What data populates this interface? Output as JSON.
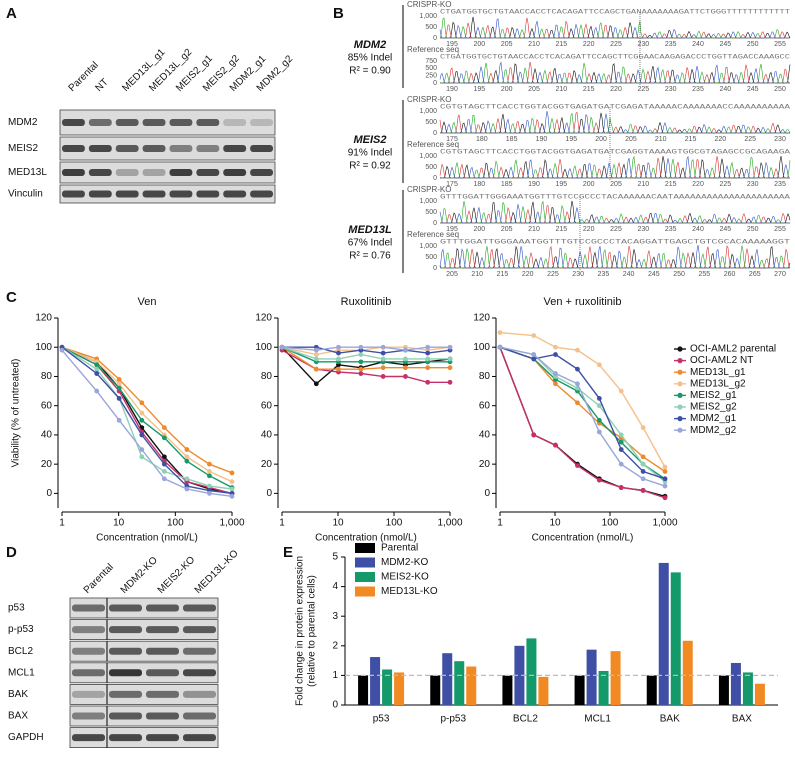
{
  "panel_labels": [
    "A",
    "B",
    "C",
    "D",
    "E"
  ],
  "panel_a": {
    "lanes": [
      "Parental",
      "NT",
      "MED13L_g1",
      "MED13L_g2",
      "MEIS2_g1",
      "MEIS2_g2",
      "MDM2_g1",
      "MDM2_g2"
    ],
    "rows": [
      "MDM2",
      "MEIS2",
      "MED13L",
      "Vinculin"
    ]
  },
  "panel_b": {
    "blocks": [
      {
        "gene": "MDM2",
        "indel": "85% Indel",
        "r2": "R² = 0.90",
        "ko_label": "CRISPR-KO",
        "ref_label": "Reference seq",
        "ko_seq": "CTGATGGTGCTGTAACCACCTCACAGATTCCAGCTGANAAAAAAAGATTCTGGGTTTTTTTTTTTT",
        "ref_seq": "CTGATGGTGCTGTAACCACCTCACAGATTCCAGCTTCGGAACAAGAGACCCTGGTTAGACCAAAGCC",
        "ko_yticks": [
          "1,000",
          "500",
          "0"
        ],
        "ref_yticks": [
          "750",
          "500",
          "250",
          "0"
        ],
        "ko_ticks": [
          195,
          200,
          205,
          210,
          215,
          220,
          225,
          230,
          235,
          240,
          245,
          250,
          255
        ],
        "ref_ticks": [
          190,
          195,
          200,
          205,
          210,
          215,
          220,
          225,
          230,
          235,
          240,
          245,
          250
        ]
      },
      {
        "gene": "MEIS2",
        "indel": "91% Indel",
        "r2": "R² = 0.92",
        "ko_label": "CRISPR-KO",
        "ref_label": "Reference seq",
        "ko_seq": "CGTGTAGCTTCACCTGGTACGGTGAGATGATCGAGATAAAAACAAAAAAACCAAAAAAAAAA",
        "ref_seq": "CGTGTAGCTTCACCTGGTACGGTGAGATGATCGAGGTAAAAGTGGCGTAGAGCCGCAGAAGA",
        "ko_yticks": [
          "1,000",
          "500",
          "0"
        ],
        "ref_yticks": [
          "1,000",
          "500",
          "0"
        ],
        "ko_ticks": [
          175,
          180,
          185,
          190,
          195,
          200,
          205,
          210,
          215,
          220,
          225,
          230
        ],
        "ref_ticks": [
          175,
          180,
          185,
          190,
          195,
          200,
          205,
          210,
          215,
          220,
          225,
          230,
          235
        ]
      },
      {
        "gene": "MED13L",
        "indel": "67% Indel",
        "r2": "R² = 0.76",
        "ko_label": "CRISPR-KO",
        "ref_label": "Reference seq",
        "ko_seq": "GTTTGGATTGGGAAATGGTTTGTCCGCCCTACAAAAAACAATAAAAAAAAAAAAAAAAAAAAA",
        "ref_seq": "GTTTGGATTGGGAAATGGTTTGTCCGCCCTACAGGATTGAGCTGTCGCACAAAAAGGT",
        "ko_yticks": [
          "1,000",
          "500",
          "0"
        ],
        "ref_yticks": [
          "1,000",
          "500",
          "0"
        ],
        "ko_ticks": [
          195,
          200,
          205,
          210,
          215,
          220,
          225,
          230,
          235,
          240,
          245,
          250,
          255
        ],
        "ref_ticks": [
          205,
          210,
          215,
          220,
          225,
          230,
          235,
          240,
          245,
          250,
          255,
          260,
          265,
          270
        ]
      }
    ]
  },
  "panel_d": {
    "lanes": [
      "Parental",
      "MDM2-KO",
      "MEIS2-KO",
      "MED13L-KO"
    ],
    "rows": [
      "p53",
      "p-p53",
      "BCL2",
      "MCL1",
      "BAK",
      "BAX",
      "GAPDH"
    ]
  },
  "chart_data": [
    {
      "type": "dose_response",
      "titles": [
        "Ven",
        "Ruxolitinib",
        "Ven + ruxolitinib"
      ],
      "xlabel": "Concentration (nmol/L)",
      "ylabel": "Viability (% of untreated)",
      "xscale": "log",
      "xlim": [
        1,
        1000
      ],
      "xticks": [
        1,
        10,
        100,
        {
          "value": 1000,
          "label": "1,000"
        }
      ],
      "ylim": [
        -10,
        120
      ],
      "yticks": [
        0,
        20,
        40,
        60,
        80,
        100,
        120
      ],
      "legend": "right",
      "x": [
        1,
        4.1,
        10.2,
        25.6,
        64,
        160,
        400,
        1000
      ],
      "series": [
        {
          "name": "OCI-AML2 parental",
          "color": "#111111",
          "values": [
            [
              100,
              90,
              72,
              45,
              25,
              8,
              3,
              0
            ],
            [
              100,
              75,
              88,
              86,
              90,
              88,
              90,
              92
            ],
            [
              100,
              40,
              33,
              20,
              10,
              4,
              2,
              -2
            ]
          ]
        },
        {
          "name": "OCI-AML2 NT",
          "color": "#c8306a",
          "values": [
            [
              100,
              88,
              70,
              42,
              22,
              8,
              4,
              0
            ],
            [
              98,
              85,
              83,
              82,
              80,
              80,
              76,
              76
            ],
            [
              100,
              40,
              33,
              19,
              9,
              4,
              2,
              -3
            ]
          ]
        },
        {
          "name": "MED13L_g1",
          "color": "#ee8a2c",
          "values": [
            [
              100,
              92,
              78,
              62,
              45,
              30,
              20,
              14
            ],
            [
              100,
              85,
              85,
              85,
              86,
              86,
              86,
              86
            ],
            [
              100,
              92,
              75,
              62,
              48,
              38,
              25,
              15
            ]
          ]
        },
        {
          "name": "MED13L_g2",
          "color": "#f5c08a",
          "values": [
            [
              100,
              90,
              75,
              55,
              40,
              25,
              15,
              8
            ],
            [
              100,
              95,
              98,
              98,
              100,
              100,
              98,
              100
            ],
            [
              110,
              108,
              100,
              98,
              88,
              70,
              45,
              18
            ]
          ]
        },
        {
          "name": "MEIS2_g1",
          "color": "#17996a",
          "values": [
            [
              100,
              88,
              72,
              50,
              38,
              22,
              12,
              4
            ],
            [
              100,
              90,
              90,
              90,
              90,
              90,
              90,
              90
            ],
            [
              100,
              92,
              78,
              70,
              50,
              35,
              20,
              10
            ]
          ]
        },
        {
          "name": "MEIS2_g2",
          "color": "#8fd1b4",
          "values": [
            [
              100,
              85,
              65,
              25,
              15,
              10,
              5,
              3
            ],
            [
              100,
              92,
              92,
              95,
              92,
              92,
              92,
              92
            ],
            [
              100,
              95,
              80,
              72,
              60,
              40,
              20,
              8
            ]
          ]
        },
        {
          "name": "MDM2_g1",
          "color": "#3f4fa6",
          "values": [
            [
              100,
              82,
              65,
              40,
              20,
              5,
              2,
              0
            ],
            [
              100,
              100,
              96,
              98,
              96,
              98,
              96,
              98
            ],
            [
              100,
              92,
              95,
              85,
              65,
              30,
              15,
              10
            ]
          ]
        },
        {
          "name": "MDM2_g2",
          "color": "#9aa5d9",
          "values": [
            [
              98,
              70,
              50,
              30,
              10,
              3,
              0,
              -2
            ],
            [
              100,
              98,
              100,
              100,
              100,
              98,
              100,
              100
            ],
            [
              100,
              95,
              82,
              75,
              42,
              20,
              10,
              5
            ]
          ]
        }
      ]
    },
    {
      "type": "bar",
      "ylabel": [
        "Fold change in protein expression",
        "(relative to parental cells)"
      ],
      "categories": [
        "p53",
        "p-p53",
        "BCL2",
        "MCL1",
        "BAK",
        "BAX"
      ],
      "ylim": [
        0,
        5
      ],
      "yticks": [
        0,
        1,
        2,
        3,
        4,
        5
      ],
      "reference_line": 1,
      "legend": "upper left",
      "series": [
        {
          "name": "Parental",
          "color": "#000000",
          "values": [
            1,
            1,
            1,
            1,
            1,
            1
          ]
        },
        {
          "name": "MDM2-KO",
          "color": "#3f4fa6",
          "values": [
            1.62,
            1.75,
            2.0,
            1.87,
            4.8,
            1.42
          ]
        },
        {
          "name": "MEIS2-KO",
          "color": "#13996a",
          "values": [
            1.2,
            1.48,
            2.25,
            1.15,
            4.48,
            1.1
          ]
        },
        {
          "name": "MED13L-KO",
          "color": "#f28a24",
          "values": [
            1.1,
            1.3,
            0.95,
            1.82,
            2.17,
            0.72
          ]
        }
      ]
    }
  ]
}
